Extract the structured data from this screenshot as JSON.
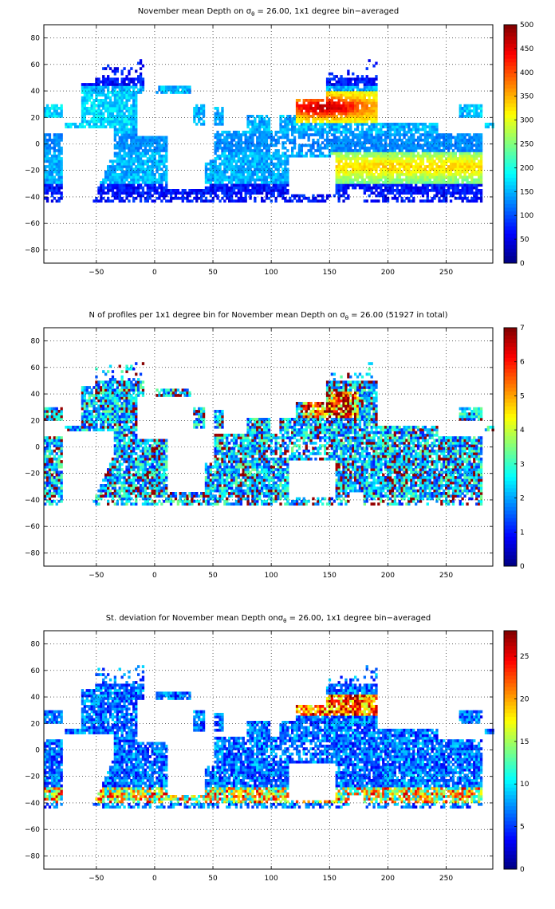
{
  "chart_data": [
    {
      "type": "heatmap",
      "title_parts": {
        "pre": "November mean Depth on ",
        "sym": "σ",
        "sub": "θ",
        "post": " = 26.00, 1x1 degree bin−averaged"
      },
      "quantity": "depth",
      "xlim": [
        -95,
        290
      ],
      "ylim": [
        -90,
        90
      ],
      "xticks": [
        -50,
        0,
        50,
        100,
        150,
        200,
        250
      ],
      "yticks": [
        -80,
        -60,
        -40,
        -20,
        0,
        20,
        40,
        60,
        80
      ],
      "grid": true,
      "colormap": "jet",
      "colorbar": {
        "min": 0,
        "max": 500,
        "ticks": [
          0,
          50,
          100,
          150,
          200,
          250,
          300,
          350,
          400,
          450,
          500
        ]
      }
    },
    {
      "type": "heatmap",
      "title_parts": {
        "pre": "N of profiles per 1x1 degree bin for November mean Depth on ",
        "sym": "σ",
        "sub": "θ",
        "post": " = 26.00 (51927 in total)"
      },
      "quantity": "count",
      "xlim": [
        -95,
        290
      ],
      "ylim": [
        -90,
        90
      ],
      "xticks": [
        -50,
        0,
        50,
        100,
        150,
        200,
        250
      ],
      "yticks": [
        -80,
        -60,
        -40,
        -20,
        0,
        20,
        40,
        60,
        80
      ],
      "grid": true,
      "colormap": "jet",
      "colorbar": {
        "min": 0,
        "max": 7,
        "ticks": [
          0,
          1,
          2,
          3,
          4,
          5,
          6,
          7
        ]
      }
    },
    {
      "type": "heatmap",
      "title_parts": {
        "pre": "St. deviation for November mean Depth on",
        "sym": "σ",
        "sub": "θ",
        "post": " = 26.00, 1x1 degree bin−averaged"
      },
      "quantity": "std",
      "xlim": [
        -95,
        290
      ],
      "ylim": [
        -90,
        90
      ],
      "xticks": [
        -50,
        0,
        50,
        100,
        150,
        200,
        250
      ],
      "yticks": [
        -80,
        -60,
        -40,
        -20,
        0,
        20,
        40,
        60,
        80
      ],
      "grid": true,
      "colormap": "jet",
      "colorbar": {
        "min": 0,
        "max": 28,
        "ticks": [
          0,
          5,
          10,
          15,
          20,
          25
        ]
      }
    }
  ]
}
